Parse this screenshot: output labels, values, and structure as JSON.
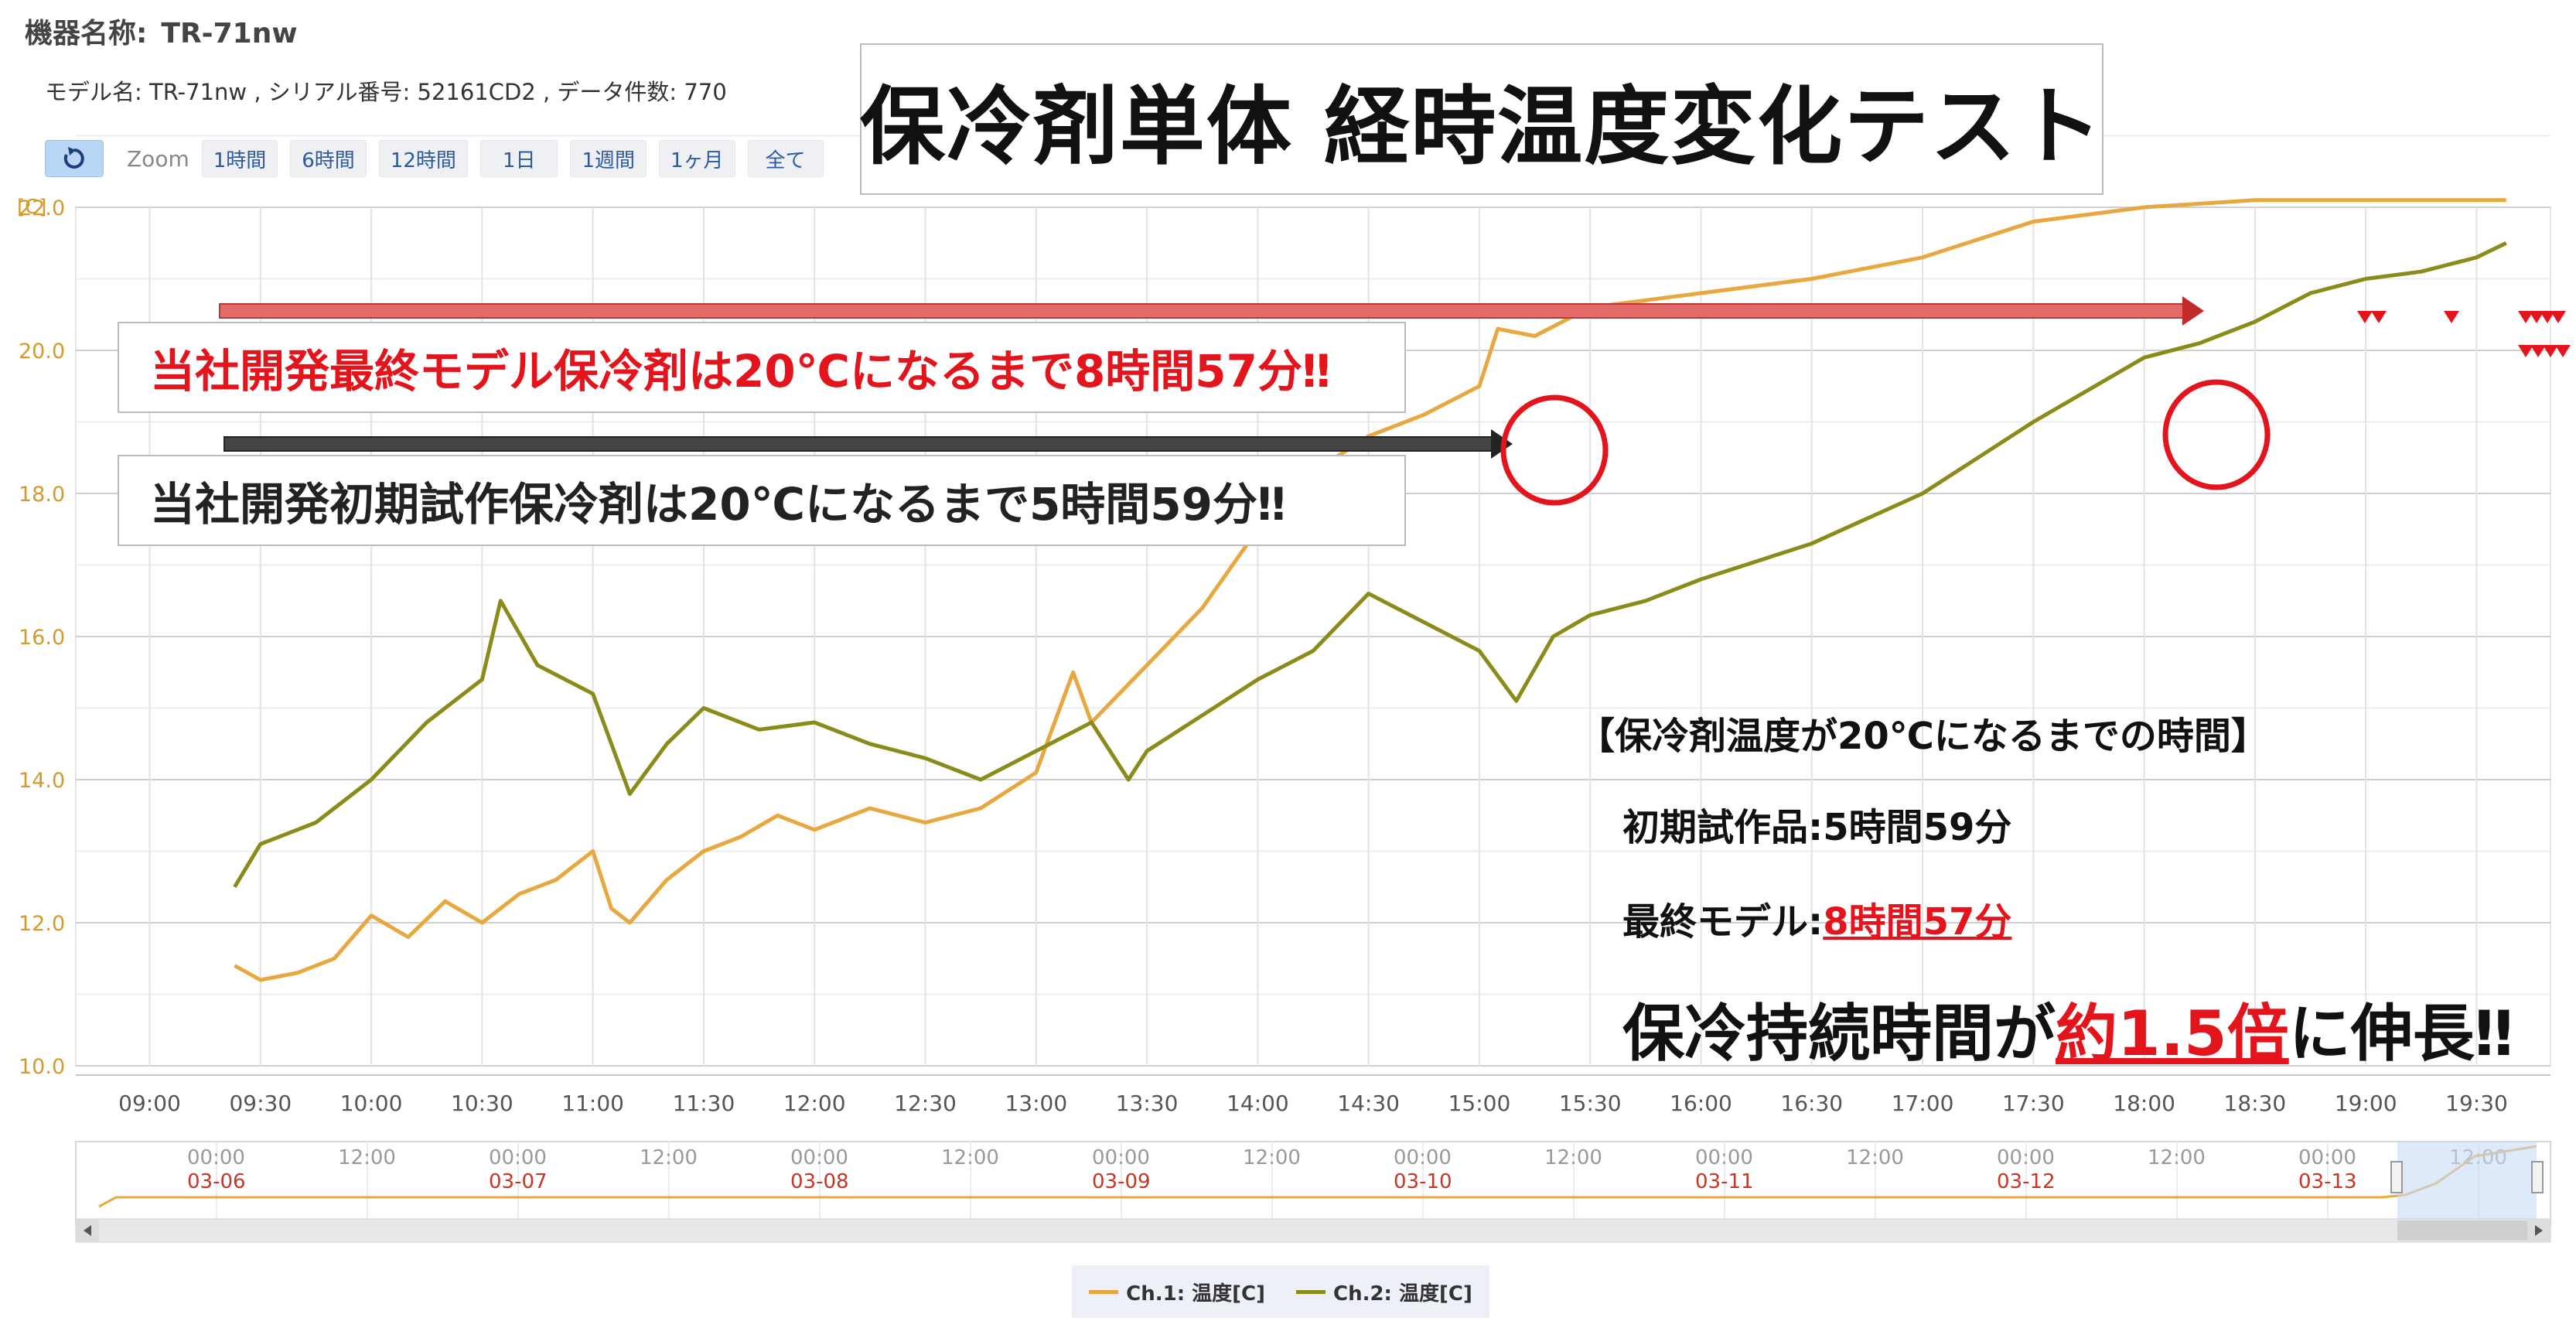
{
  "header": {
    "device_label": "機器名称:",
    "device_value": "TR-71nw",
    "model_info": "モデル名: TR-71nw , シリアル番号: 52161CD2 , データ件数: 770"
  },
  "toolbar": {
    "zoom_label": "Zoom",
    "zoom_buttons": [
      "1時間",
      "6時間",
      "12時間",
      "1日",
      "1週間",
      "1ヶ月",
      "全て"
    ]
  },
  "title": "保冷剤単体 経時温度変化テスト",
  "annotations": {
    "final_model_callout": "当社開発最終モデル保冷剤は20℃になるまで8時間57分‼",
    "prototype_callout": "当社開発初期試作保冷剤は20℃になるまで5時間59分‼",
    "summary_title": "【保冷剤温度が20℃になるまでの時間】",
    "prototype_label": "初期試作品:",
    "prototype_value": "5時間59分",
    "final_label": "最終モデル:",
    "final_value": "8時間57分",
    "conclusion_prefix": "保冷持続時間が",
    "conclusion_value": "約1.5倍",
    "conclusion_suffix": "に伸長‼"
  },
  "navigator": {
    "tick_labels": [
      "00:00",
      "12:00",
      "00:00",
      "12:00",
      "00:00",
      "12:00",
      "00:00",
      "12:00",
      "00:00",
      "12:00",
      "00:00",
      "12:00",
      "00:00",
      "12:00",
      "00:00",
      "12:00"
    ],
    "date_labels": [
      "03-06",
      "03-07",
      "03-08",
      "03-09",
      "03-10",
      "03-11",
      "03-12",
      "03-13"
    ]
  },
  "colors": {
    "ch1": "#e8a840",
    "ch2": "#8b8b1a",
    "accent_red": "#e4141c",
    "grid": "#dddddd",
    "ytick": "#d49a2a"
  },
  "icons": {
    "reset": "reset-icon",
    "scroll_left": "arrow-left-icon",
    "scroll_right": "arrow-right-icon"
  },
  "chart_data": {
    "type": "line",
    "ylabel": "[C]",
    "ylim": [
      10.0,
      22.0
    ],
    "y_ticks": [
      "10.0",
      "12.0",
      "14.0",
      "16.0",
      "18.0",
      "20.0",
      "22.0"
    ],
    "x_ticks": [
      "09:00",
      "09:30",
      "10:00",
      "10:30",
      "11:00",
      "11:30",
      "12:00",
      "12:30",
      "13:00",
      "13:30",
      "14:00",
      "14:30",
      "15:00",
      "15:30",
      "16:00",
      "16:30",
      "17:00",
      "17:30",
      "18:00",
      "18:30",
      "19:00",
      "19:30"
    ],
    "grid": true,
    "legend_position": "bottom-center",
    "series": [
      {
        "name": "Ch.1: 温度[C]",
        "x": [
          "09:23",
          "09:30",
          "09:40",
          "09:50",
          "10:00",
          "10:10",
          "10:20",
          "10:30",
          "10:40",
          "10:50",
          "11:00",
          "11:05",
          "11:10",
          "11:20",
          "11:30",
          "11:40",
          "11:50",
          "12:00",
          "12:15",
          "12:30",
          "12:45",
          "13:00",
          "13:10",
          "13:15",
          "13:30",
          "13:45",
          "14:00",
          "14:15",
          "14:30",
          "14:45",
          "15:00",
          "15:05",
          "15:15",
          "15:30",
          "16:00",
          "16:30",
          "17:00",
          "17:30",
          "18:00",
          "18:30",
          "19:00",
          "19:30",
          "19:38"
        ],
        "values": [
          11.4,
          11.2,
          11.3,
          11.5,
          12.1,
          11.8,
          12.3,
          12.0,
          12.4,
          12.6,
          13.0,
          12.2,
          12.0,
          12.6,
          13.0,
          13.2,
          13.5,
          13.3,
          13.6,
          13.4,
          13.6,
          14.1,
          15.5,
          14.8,
          15.6,
          16.4,
          17.5,
          18.3,
          18.8,
          19.1,
          19.5,
          20.3,
          20.2,
          20.6,
          20.8,
          21.0,
          21.3,
          21.8,
          22.0,
          22.1,
          22.1,
          22.1,
          22.1
        ]
      },
      {
        "name": "Ch.2: 温度[C]",
        "x": [
          "09:23",
          "09:30",
          "09:45",
          "10:00",
          "10:15",
          "10:30",
          "10:35",
          "10:45",
          "11:00",
          "11:10",
          "11:20",
          "11:30",
          "11:45",
          "12:00",
          "12:15",
          "12:30",
          "12:45",
          "13:00",
          "13:15",
          "13:25",
          "13:30",
          "13:45",
          "14:00",
          "14:15",
          "14:30",
          "14:45",
          "15:00",
          "15:10",
          "15:20",
          "15:30",
          "15:45",
          "16:00",
          "16:30",
          "17:00",
          "17:30",
          "18:00",
          "18:15",
          "18:30",
          "18:45",
          "19:00",
          "19:15",
          "19:30",
          "19:38"
        ],
        "values": [
          12.5,
          13.1,
          13.4,
          14.0,
          14.8,
          15.4,
          16.5,
          15.6,
          15.2,
          13.8,
          14.5,
          15.0,
          14.7,
          14.8,
          14.5,
          14.3,
          14.0,
          14.4,
          14.8,
          14.0,
          14.4,
          14.9,
          15.4,
          15.8,
          16.6,
          16.2,
          15.8,
          15.1,
          16.0,
          16.3,
          16.5,
          16.8,
          17.3,
          18.0,
          19.0,
          19.9,
          20.1,
          20.4,
          20.8,
          21.0,
          21.1,
          21.3,
          21.5
        ]
      }
    ]
  }
}
